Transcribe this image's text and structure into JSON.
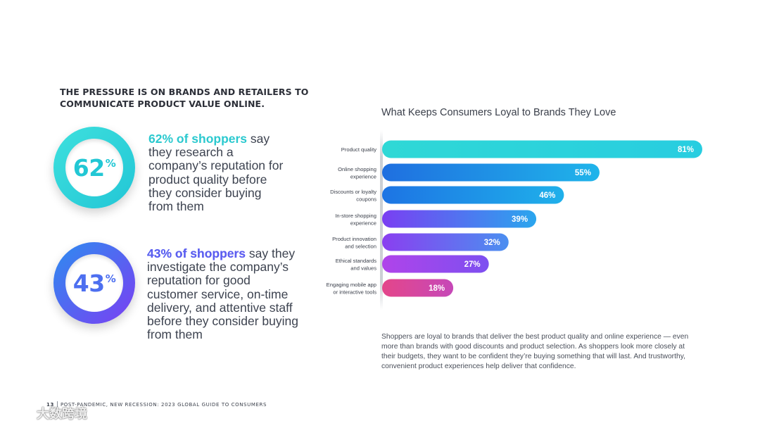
{
  "headline": {
    "line1": "THE PRESSURE IS ON BRANDS AND RETAILERS TO",
    "line2": "COMMUNICATE PRODUCT VALUE ONLINE."
  },
  "stats": [
    {
      "number": "62",
      "suffix": "%",
      "highlight": "62% of shoppers",
      "text": " say they research a company’s reputation for product quality before they consider buying from them"
    },
    {
      "number": "43",
      "suffix": "%",
      "highlight": "43% of shoppers",
      "text": " say they investigate the company’s reputation for good customer service, on-time delivery, and attentive staff before they consider buying from them"
    }
  ],
  "colors": {
    "teal": "#2ed3d3",
    "blue": "#1f78e6",
    "purple": "#7a3ff2",
    "magenta": "#d23fd6",
    "pink": "#e8467f"
  },
  "chart_data": {
    "type": "bar",
    "orientation": "horizontal",
    "title": "What Keeps Consumers Loyal to Brands They Love",
    "categories": [
      [
        "Product quality"
      ],
      [
        "Online shopping",
        "experience"
      ],
      [
        "Discounts or loyalty",
        "coupons"
      ],
      [
        "In-store shopping",
        "experience"
      ],
      [
        "Product innovation",
        "and selection"
      ],
      [
        "Ethical standards",
        "and values"
      ],
      [
        "Engaging mobile app",
        "or interactive tools"
      ]
    ],
    "values": [
      81,
      55,
      46,
      39,
      32,
      27,
      18
    ],
    "value_labels": [
      "81%",
      "55%",
      "46%",
      "39%",
      "32%",
      "27%",
      "18%"
    ],
    "value_unit": "%",
    "xlim": [
      0,
      81
    ],
    "grid": false,
    "bar_colors": [
      [
        "#2fd8d6",
        "#28cde0"
      ],
      [
        "#1f6fe0",
        "#1fb4ea"
      ],
      [
        "#1d74e4",
        "#1fb0ea"
      ],
      [
        "#7a3ff2",
        "#2aa6ee"
      ],
      [
        "#8a3ff0",
        "#4b8ff0"
      ],
      [
        "#b044ea",
        "#7d4ff0"
      ],
      [
        "#e4468a",
        "#c648b8"
      ]
    ]
  },
  "caption": "Shoppers are loyal to brands that deliver the best product quality and online experience — even more than brands with good discounts and product selection. As shoppers look more closely at their budgets, they want to be confident they’re buying something that will last. And trustworthy, convenient product experiences help deliver that confidence.",
  "footer": {
    "page": "13",
    "title": "POST-PANDEMIC, NEW RECESSION: 2023 GLOBAL GUIDE TO CONSUMERS"
  },
  "watermark": {
    "text": "大数跨境",
    "icon": "brand-logo-icon"
  }
}
